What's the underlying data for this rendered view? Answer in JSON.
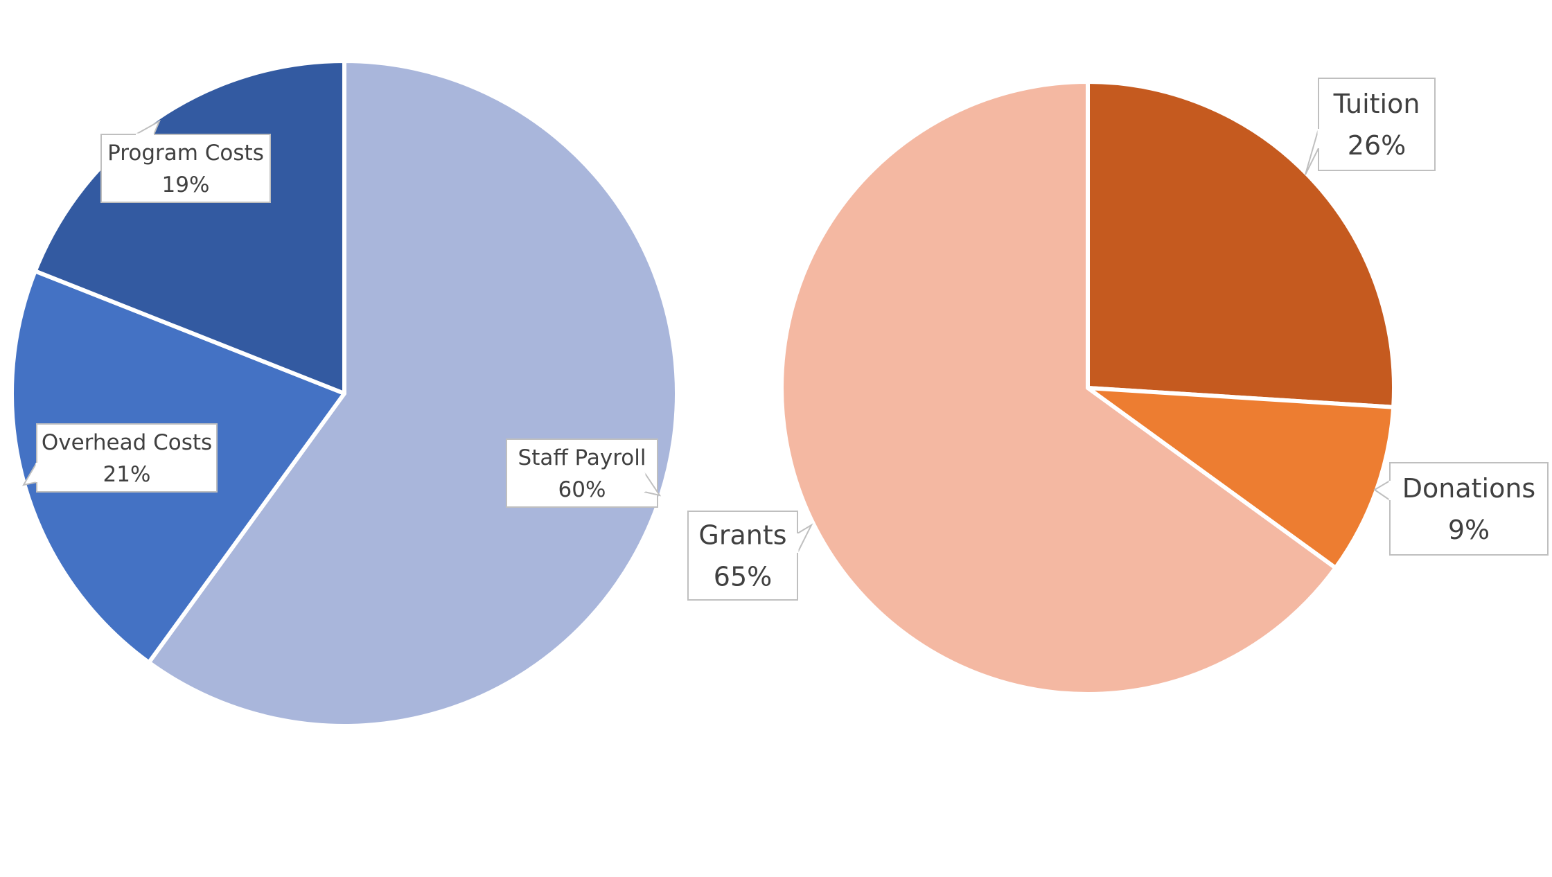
{
  "chart_data": [
    {
      "type": "pie",
      "title": "",
      "slices": [
        {
          "label": "Staff Payroll",
          "value": 60,
          "percent_text": "60%",
          "color": "#A9B6DB"
        },
        {
          "label": "Overhead Costs",
          "value": 21,
          "percent_text": "21%",
          "color": "#4472C4"
        },
        {
          "label": "Program Costs",
          "value": 19,
          "percent_text": "19%",
          "color": "#335AA1"
        }
      ],
      "start_angle_deg": 0,
      "direction": "clockwise",
      "legend": "none",
      "data_labels": "callouts"
    },
    {
      "type": "pie",
      "title": "",
      "slices": [
        {
          "label": "Tuition",
          "value": 26,
          "percent_text": "26%",
          "color": "#C55A1F"
        },
        {
          "label": "Donations",
          "value": 9,
          "percent_text": "9%",
          "color": "#ED7D31"
        },
        {
          "label": "Grants",
          "value": 65,
          "percent_text": "65%",
          "color": "#F4B8A2"
        }
      ],
      "start_angle_deg": 0,
      "direction": "clockwise",
      "legend": "none",
      "data_labels": "callouts"
    }
  ]
}
